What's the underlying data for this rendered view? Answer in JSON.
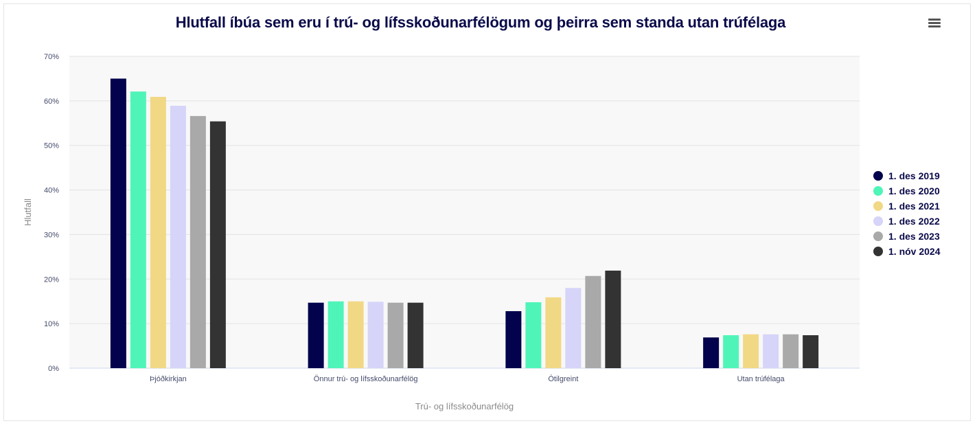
{
  "menu_icon": "hamburger-menu-icon",
  "chart_data": {
    "type": "bar",
    "title": "Hlutfall íbúa sem eru í trú- og lífsskoðunarfélögum og þeirra sem standa utan trúfélaga",
    "xlabel": "Trú- og lífsskoðunarfélög",
    "ylabel": "Hlutfall",
    "ylim": [
      0,
      70
    ],
    "yticks": [
      "0%",
      "10%",
      "20%",
      "30%",
      "40%",
      "50%",
      "60%",
      "70%"
    ],
    "categories": [
      "Þjóðkirkjan",
      "Önnur trú- og lífsskoðunarfélög",
      "Ótilgreint",
      "Utan trúfélaga"
    ],
    "grid": true,
    "legend_position": "right",
    "series": [
      {
        "name": "1. des 2019",
        "color": "#03034d",
        "values": [
          65.0,
          14.7,
          12.8,
          6.9
        ]
      },
      {
        "name": "1. des 2020",
        "color": "#4ff5b8",
        "values": [
          62.1,
          15.0,
          14.8,
          7.4
        ]
      },
      {
        "name": "1. des 2021",
        "color": "#f1d885",
        "values": [
          60.9,
          15.0,
          15.9,
          7.6
        ]
      },
      {
        "name": "1. des 2022",
        "color": "#d6d4f8",
        "values": [
          58.9,
          14.9,
          18.0,
          7.6
        ]
      },
      {
        "name": "1. des 2023",
        "color": "#a9a9a9",
        "values": [
          56.6,
          14.7,
          20.7,
          7.6
        ]
      },
      {
        "name": "1. nóv 2024",
        "color": "#333333",
        "values": [
          55.4,
          14.7,
          21.9,
          7.4
        ]
      }
    ]
  }
}
